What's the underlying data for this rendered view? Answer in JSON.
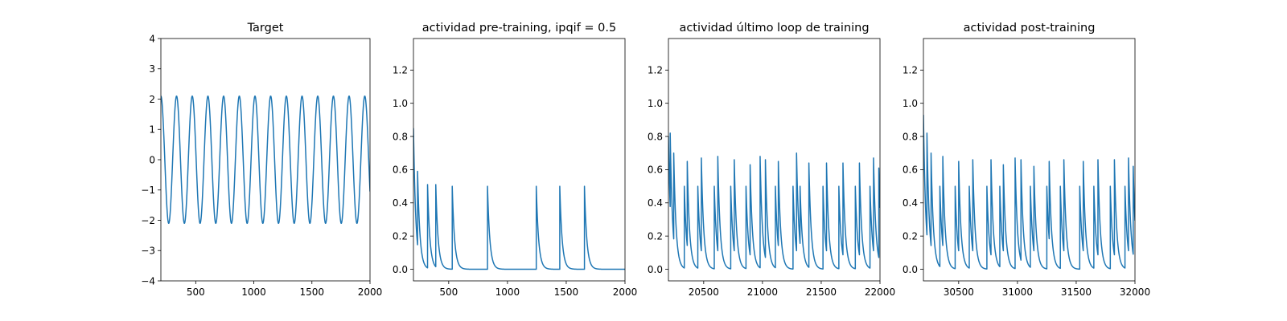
{
  "chart_data": [
    {
      "type": "line",
      "title": "Target",
      "xlim": [
        200,
        2000
      ],
      "ylim": [
        -4,
        4
      ],
      "xticks": [
        500,
        1000,
        1500,
        2000
      ],
      "yticks": [
        -4,
        -3,
        -2,
        -1,
        0,
        1,
        2,
        3,
        4
      ],
      "color": "#1f77b4",
      "series": [
        {
          "kind": "sine",
          "amplitude": 2.1,
          "period": 135,
          "phase_peak_x": 200,
          "x_range": [
            200,
            2000
          ]
        }
      ]
    },
    {
      "type": "line",
      "title": "actividad pre-training, ipqif = 0.5",
      "xlim": [
        200,
        2000
      ],
      "ylim": [
        -0.07,
        1.39
      ],
      "xticks": [
        500,
        1000,
        1500,
        2000
      ],
      "yticks": [
        0.0,
        0.2,
        0.4,
        0.6,
        0.8,
        1.0,
        1.2
      ],
      "color": "#1f77b4",
      "series": [
        {
          "kind": "spike_train",
          "start_value": 0.85,
          "tau": 20,
          "x_range": [
            200,
            2000
          ],
          "spikes": [
            [
              235,
              0.59
            ],
            [
              320,
              0.51
            ],
            [
              390,
              0.51
            ],
            [
              530,
              0.5
            ],
            [
              830,
              0.5
            ],
            [
              1245,
              0.5
            ],
            [
              1445,
              0.5
            ],
            [
              1655,
              0.5
            ]
          ]
        }
      ]
    },
    {
      "type": "line",
      "title": "actividad último loop de training",
      "xlim": [
        20200,
        22000
      ],
      "ylim": [
        -0.07,
        1.39
      ],
      "xticks": [
        20500,
        21000,
        21500,
        22000
      ],
      "yticks": [
        0.0,
        0.2,
        0.4,
        0.6,
        0.8,
        1.0,
        1.2
      ],
      "color": "#1f77b4",
      "series": [
        {
          "kind": "spike_train",
          "start_value": 0.8,
          "tau": 20,
          "x_range": [
            20200,
            22000
          ],
          "spikes": [
            [
              20215,
              0.82
            ],
            [
              20245,
              0.7
            ],
            [
              20335,
              0.5
            ],
            [
              20360,
              0.65
            ],
            [
              20450,
              0.5
            ],
            [
              20480,
              0.67
            ],
            [
              20590,
              0.5
            ],
            [
              20620,
              0.68
            ],
            [
              20730,
              0.5
            ],
            [
              20760,
              0.66
            ],
            [
              20860,
              0.5
            ],
            [
              20895,
              0.63
            ],
            [
              20980,
              0.68
            ],
            [
              21025,
              0.66
            ],
            [
              21110,
              0.5
            ],
            [
              21135,
              0.65
            ],
            [
              21260,
              0.5
            ],
            [
              21290,
              0.7
            ],
            [
              21320,
              0.5
            ],
            [
              21395,
              0.64
            ],
            [
              21515,
              0.5
            ],
            [
              21545,
              0.64
            ],
            [
              21650,
              0.5
            ],
            [
              21685,
              0.64
            ],
            [
              21790,
              0.5
            ],
            [
              21825,
              0.64
            ],
            [
              21915,
              0.5
            ],
            [
              21945,
              0.67
            ],
            [
              21990,
              0.61
            ]
          ]
        }
      ]
    },
    {
      "type": "line",
      "title": "actividad post-training",
      "xlim": [
        30200,
        32000
      ],
      "ylim": [
        -0.07,
        1.39
      ],
      "xticks": [
        30500,
        31000,
        31500,
        32000
      ],
      "yticks": [
        0.0,
        0.2,
        0.4,
        0.6,
        0.8,
        1.0,
        1.2
      ],
      "color": "#1f77b4",
      "series": [
        {
          "kind": "spike_train",
          "start_value": 0.93,
          "tau": 20,
          "x_range": [
            30200,
            32000
          ],
          "spikes": [
            [
              30230,
              0.82
            ],
            [
              30265,
              0.7
            ],
            [
              30340,
              0.5
            ],
            [
              30365,
              0.68
            ],
            [
              30470,
              0.5
            ],
            [
              30500,
              0.65
            ],
            [
              30590,
              0.5
            ],
            [
              30620,
              0.66
            ],
            [
              30740,
              0.5
            ],
            [
              30775,
              0.66
            ],
            [
              30850,
              0.5
            ],
            [
              30880,
              0.63
            ],
            [
              30980,
              0.67
            ],
            [
              31030,
              0.66
            ],
            [
              31110,
              0.5
            ],
            [
              31140,
              0.62
            ],
            [
              31250,
              0.5
            ],
            [
              31270,
              0.65
            ],
            [
              31365,
              0.5
            ],
            [
              31395,
              0.66
            ],
            [
              31530,
              0.5
            ],
            [
              31560,
              0.65
            ],
            [
              31650,
              0.5
            ],
            [
              31685,
              0.66
            ],
            [
              31790,
              0.5
            ],
            [
              31825,
              0.66
            ],
            [
              31915,
              0.5
            ],
            [
              31945,
              0.67
            ],
            [
              31985,
              0.62
            ]
          ]
        }
      ]
    }
  ]
}
